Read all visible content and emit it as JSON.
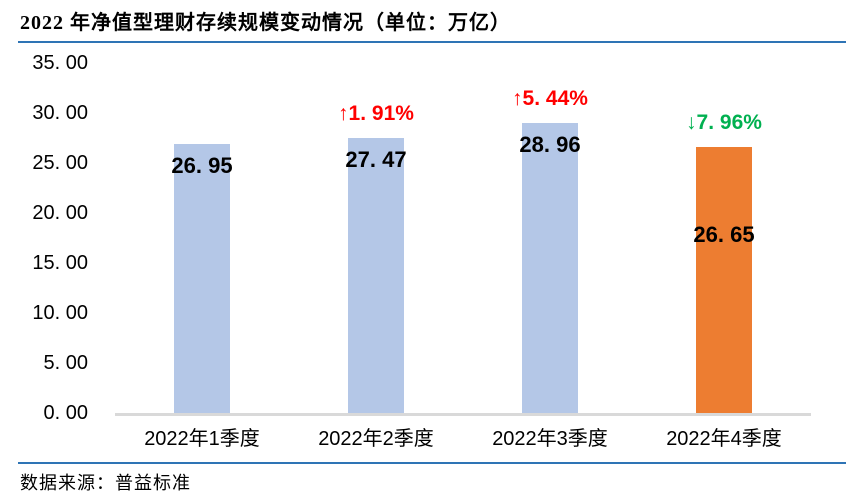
{
  "page": {
    "title": "2022 年净值型理财存续规模变动情况（单位：万亿）",
    "source": "数据来源：普益标准"
  },
  "colors": {
    "bar_blue": "#B4C7E7",
    "bar_orange": "#ED7D31",
    "increase_red": "#FF0000",
    "decrease_green": "#00B050",
    "axis_gray": "#D9D9D9",
    "rule_blue": "#2E74B5"
  },
  "chart_data": {
    "type": "bar",
    "title": "2022 年净值型理财存续规模变动情况（单位：万亿）",
    "unit": "万亿",
    "xlabel": "",
    "ylabel": "",
    "categories": [
      "2022年1季度",
      "2022年2季度",
      "2022年3季度",
      "2022年4季度"
    ],
    "values": [
      26.95,
      27.47,
      28.96,
      26.65
    ],
    "value_labels": [
      "26. 95",
      "27. 47",
      "28. 96",
      "26. 65"
    ],
    "annotations": [
      "",
      "↑1. 91%",
      "↑5. 44%",
      "↓7. 96%"
    ],
    "annotation_colors": [
      "",
      "#FF0000",
      "#FF0000",
      "#00B050"
    ],
    "bar_colors": [
      "#B4C7E7",
      "#B4C7E7",
      "#B4C7E7",
      "#ED7D31"
    ],
    "ylim": [
      0,
      35
    ],
    "ytick_step": 5,
    "ytick_labels": [
      "0. 00",
      "5. 00",
      "10. 00",
      "15. 00",
      "20. 00",
      "25. 00",
      "30. 00",
      "35. 00"
    ],
    "grid": false,
    "legend": false
  }
}
